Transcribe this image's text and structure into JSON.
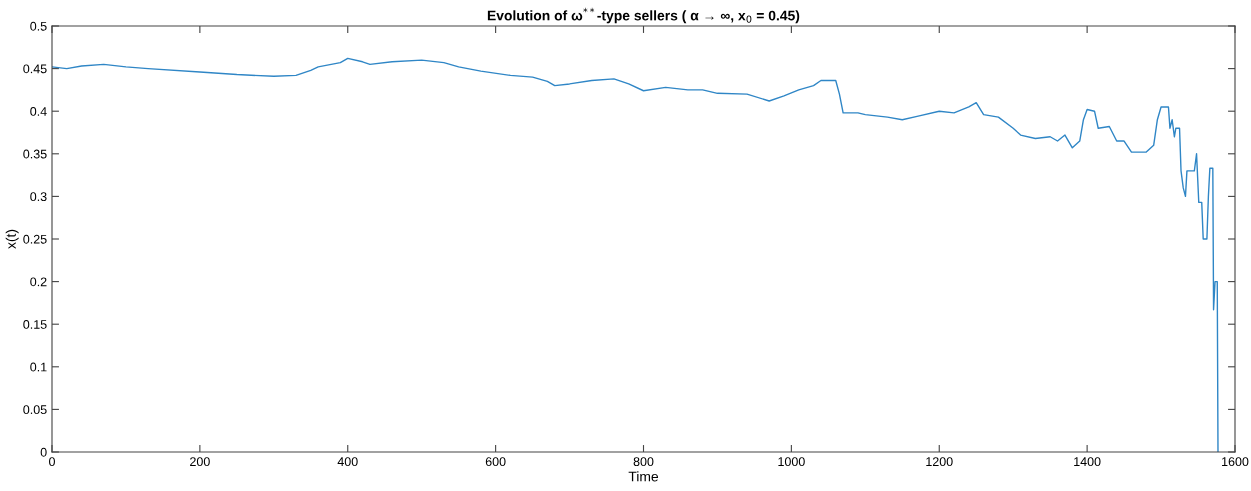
{
  "chart_data": {
    "type": "line",
    "title": "Evolution of ω$^{**}$-type sellers ( α → ∞, x$_{0}$ = 0.45)",
    "xlabel": "Time",
    "ylabel": "x(t)",
    "xlim": [
      0,
      1600
    ],
    "xticks": [
      0,
      200,
      400,
      600,
      800,
      1000,
      1200,
      1400,
      1600
    ],
    "ylim": [
      0,
      0.5
    ],
    "yticks": [
      0,
      0.05,
      0.1,
      0.15,
      0.2,
      0.25,
      0.3,
      0.35,
      0.4,
      0.45,
      0.5
    ],
    "grid": false,
    "marker": "none",
    "line_style": "solid",
    "series": [
      {
        "color": "#2f86c6",
        "x": [
          0,
          20,
          40,
          70,
          100,
          130,
          200,
          250,
          300,
          330,
          350,
          360,
          390,
          400,
          420,
          430,
          460,
          500,
          530,
          550,
          580,
          620,
          650,
          670,
          680,
          700,
          730,
          760,
          780,
          800,
          830,
          860,
          880,
          900,
          940,
          970,
          990,
          1010,
          1030,
          1040,
          1060,
          1065,
          1070,
          1090,
          1100,
          1130,
          1150,
          1170,
          1200,
          1220,
          1240,
          1250,
          1260,
          1280,
          1300,
          1310,
          1330,
          1350,
          1360,
          1370,
          1380,
          1390,
          1395,
          1400,
          1410,
          1415,
          1430,
          1440,
          1450,
          1460,
          1480,
          1490,
          1495,
          1500,
          1510,
          1512,
          1515,
          1518,
          1520,
          1525,
          1527,
          1530,
          1533,
          1535,
          1545,
          1548,
          1551,
          1555,
          1557,
          1562,
          1564,
          1566,
          1570,
          1571,
          1573,
          1576,
          1577
        ],
        "values": [
          0.452,
          0.45,
          0.453,
          0.455,
          0.452,
          0.45,
          0.446,
          0.443,
          0.441,
          0.442,
          0.448,
          0.452,
          0.457,
          0.462,
          0.458,
          0.455,
          0.458,
          0.46,
          0.457,
          0.452,
          0.447,
          0.442,
          0.44,
          0.435,
          0.43,
          0.432,
          0.436,
          0.438,
          0.432,
          0.424,
          0.428,
          0.425,
          0.425,
          0.421,
          0.42,
          0.412,
          0.418,
          0.425,
          0.43,
          0.436,
          0.436,
          0.42,
          0.398,
          0.398,
          0.396,
          0.393,
          0.39,
          0.394,
          0.4,
          0.398,
          0.405,
          0.41,
          0.396,
          0.393,
          0.38,
          0.372,
          0.368,
          0.37,
          0.365,
          0.372,
          0.357,
          0.365,
          0.39,
          0.402,
          0.4,
          0.38,
          0.382,
          0.365,
          0.365,
          0.352,
          0.352,
          0.36,
          0.39,
          0.405,
          0.405,
          0.38,
          0.39,
          0.37,
          0.38,
          0.38,
          0.33,
          0.31,
          0.3,
          0.33,
          0.33,
          0.35,
          0.293,
          0.293,
          0.25,
          0.25,
          0.3,
          0.333,
          0.333,
          0.167,
          0.2,
          0.2,
          0.0
        ]
      }
    ]
  }
}
